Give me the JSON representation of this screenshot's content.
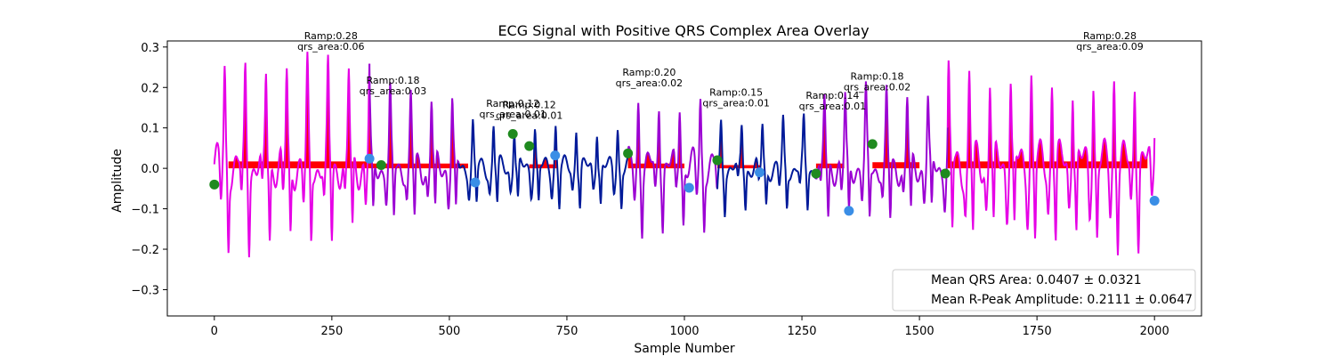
{
  "chart_data": {
    "type": "line",
    "title": "ECG Signal with Positive QRS Complex Area Overlay",
    "xlabel": "Sample Number",
    "ylabel": "Amplitude",
    "xlim": [
      -100,
      2100
    ],
    "ylim": [
      -0.365,
      0.315
    ],
    "xticks": [
      0,
      250,
      500,
      750,
      1000,
      1250,
      1500,
      1750,
      2000
    ],
    "yticks": [
      -0.3,
      -0.2,
      -0.1,
      0.0,
      0.1,
      0.2,
      0.3
    ],
    "grid": false,
    "legend_position": "bottom-right",
    "legend": [
      "Mean QRS Area: 0.0407 ± 0.0321",
      "Mean R-Peak Amplitude: 0.2111 ± 0.0647"
    ],
    "colors": {
      "signal_high": "#e600e6",
      "signal_mid": "#9b00d3",
      "signal_low": "#001a99",
      "fill": "#ff0000",
      "onset_marker": "#1f8a1f",
      "offset_marker": "#3a8ee6"
    },
    "segments": [
      {
        "start": 0,
        "end": 330,
        "level": "high"
      },
      {
        "start": 330,
        "end": 520,
        "level": "mid"
      },
      {
        "start": 520,
        "end": 880,
        "level": "low"
      },
      {
        "start": 880,
        "end": 1070,
        "level": "mid"
      },
      {
        "start": 1070,
        "end": 1280,
        "level": "low"
      },
      {
        "start": 1280,
        "end": 1560,
        "level": "mid"
      },
      {
        "start": 1560,
        "end": 2000,
        "level": "high"
      }
    ],
    "qrs_regions": [
      {
        "start": 30,
        "end": 330,
        "base": 0.017
      },
      {
        "start": 330,
        "end": 540,
        "base": 0.012
      },
      {
        "start": 670,
        "end": 730,
        "base": 0.01
      },
      {
        "start": 880,
        "end": 1000,
        "base": 0.012
      },
      {
        "start": 1070,
        "end": 1160,
        "base": 0.008
      },
      {
        "start": 1280,
        "end": 1340,
        "base": 0.012
      },
      {
        "start": 1400,
        "end": 1500,
        "base": 0.015
      },
      {
        "start": 1560,
        "end": 1985,
        "base": 0.017
      }
    ],
    "onset_markers": [
      {
        "x": 0,
        "y": -0.04
      },
      {
        "x": 355,
        "y": 0.008
      },
      {
        "x": 635,
        "y": 0.085
      },
      {
        "x": 670,
        "y": 0.055
      },
      {
        "x": 880,
        "y": 0.037
      },
      {
        "x": 1070,
        "y": 0.02
      },
      {
        "x": 1280,
        "y": -0.013
      },
      {
        "x": 1400,
        "y": 0.06
      },
      {
        "x": 1555,
        "y": -0.013
      }
    ],
    "offset_markers": [
      {
        "x": 330,
        "y": 0.024
      },
      {
        "x": 555,
        "y": -0.035
      },
      {
        "x": 725,
        "y": 0.032
      },
      {
        "x": 1010,
        "y": -0.048
      },
      {
        "x": 1160,
        "y": -0.01
      },
      {
        "x": 1350,
        "y": -0.105
      },
      {
        "x": 2000,
        "y": -0.08
      }
    ],
    "annotations": [
      {
        "x": 248,
        "y": 0.295,
        "lines": [
          "Ramp:0.28",
          "qrs_area:0.06"
        ]
      },
      {
        "x": 380,
        "y": 0.185,
        "lines": [
          "Ramp:0.18",
          "qrs_area:0.03"
        ]
      },
      {
        "x": 635,
        "y": 0.128,
        "lines": [
          "Ramp:0.12",
          "qrs_area:0.01"
        ]
      },
      {
        "x": 670,
        "y": 0.125,
        "lines": [
          "Ramp:0.12",
          "qrs_area:0.01"
        ]
      },
      {
        "x": 925,
        "y": 0.205,
        "lines": [
          "Ramp:0.20",
          "qrs_area:0.02"
        ]
      },
      {
        "x": 1110,
        "y": 0.155,
        "lines": [
          "Ramp:0.15",
          "qrs_area:0.01"
        ]
      },
      {
        "x": 1315,
        "y": 0.148,
        "lines": [
          "Ramp:0.14",
          "qrs_area:0.01"
        ]
      },
      {
        "x": 1410,
        "y": 0.195,
        "lines": [
          "Ramp:0.18",
          "qrs_area:0.02"
        ]
      },
      {
        "x": 1905,
        "y": 0.295,
        "lines": [
          "Ramp:0.28",
          "qrs_area:0.09"
        ]
      }
    ]
  }
}
